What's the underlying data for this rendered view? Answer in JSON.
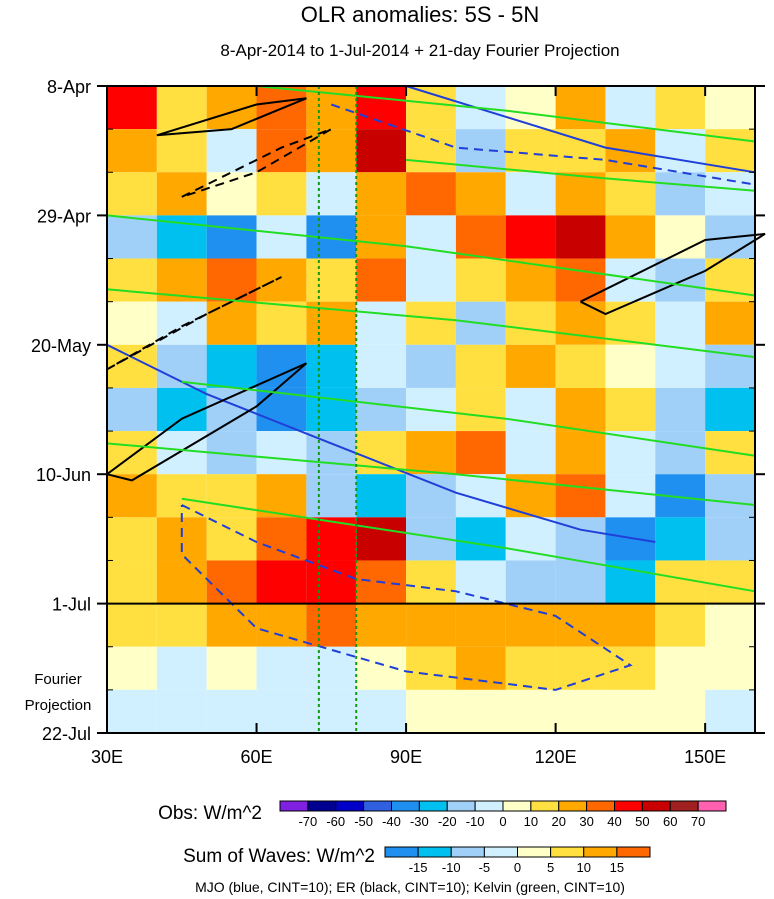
{
  "chart_data": {
    "type": "heatmap",
    "title": "OLR anomalies: 5S - 5N",
    "subtitle": "8-Apr-2014 to 1-Jul-2014 + 21-day Fourier Projection",
    "x_ticks": [
      {
        "lon": 30,
        "label": "30E"
      },
      {
        "lon": 60,
        "label": "60E"
      },
      {
        "lon": 90,
        "label": "90E"
      },
      {
        "lon": 120,
        "label": "120E"
      },
      {
        "lon": 150,
        "label": "150E"
      }
    ],
    "xlim": [
      30,
      160
    ],
    "y_ticks": [
      {
        "day": 0,
        "label": "8-Apr"
      },
      {
        "day": 21,
        "label": "29-Apr"
      },
      {
        "day": 42,
        "label": "20-May"
      },
      {
        "day": 63,
        "label": "10-Jun"
      },
      {
        "day": 84,
        "label": "1-Jul"
      },
      {
        "day": 105,
        "label": "22-Jul"
      }
    ],
    "ylim_days": [
      0,
      105
    ],
    "projection_label": [
      "Fourier",
      "Projection"
    ],
    "projection_start_day": 84,
    "reference_lons": [
      72.5,
      80
    ],
    "grid_lons": [
      30,
      40,
      50,
      60,
      70,
      80,
      90,
      100,
      110,
      120,
      130,
      140,
      150,
      160
    ],
    "grid_days": [
      0,
      7,
      14,
      21,
      28,
      35,
      42,
      49,
      56,
      63,
      70,
      77,
      84,
      91,
      98
    ],
    "values": [
      [
        40,
        10,
        20,
        30,
        20,
        40,
        10,
        -10,
        0,
        20,
        -10,
        10,
        0,
        -20
      ],
      [
        20,
        10,
        -10,
        30,
        20,
        50,
        10,
        -20,
        10,
        10,
        20,
        -10,
        10,
        -10
      ],
      [
        10,
        20,
        0,
        10,
        -10,
        20,
        30,
        20,
        -10,
        20,
        10,
        -20,
        -10,
        10
      ],
      [
        -20,
        -30,
        -40,
        -10,
        -40,
        20,
        -10,
        30,
        40,
        50,
        20,
        0,
        -20,
        -10
      ],
      [
        10,
        20,
        30,
        20,
        10,
        30,
        -10,
        10,
        20,
        30,
        -10,
        -20,
        10,
        -10
      ],
      [
        0,
        -10,
        20,
        10,
        20,
        -10,
        10,
        -20,
        10,
        20,
        10,
        -10,
        20,
        10
      ],
      [
        10,
        -20,
        -30,
        -40,
        -30,
        -10,
        -20,
        10,
        20,
        10,
        0,
        -10,
        -20,
        10
      ],
      [
        -20,
        -30,
        -20,
        -40,
        -30,
        -20,
        -10,
        10,
        -10,
        20,
        10,
        -20,
        -30,
        10
      ],
      [
        10,
        -10,
        -20,
        -10,
        -20,
        10,
        20,
        30,
        -10,
        20,
        -10,
        -20,
        10,
        -10
      ],
      [
        20,
        10,
        10,
        20,
        -20,
        -30,
        -20,
        -10,
        20,
        30,
        -10,
        -40,
        -20,
        -30
      ],
      [
        10,
        20,
        10,
        30,
        40,
        50,
        -20,
        -30,
        -10,
        -20,
        -40,
        -30,
        -20,
        -10
      ],
      [
        10,
        20,
        30,
        40,
        40,
        30,
        10,
        -10,
        -20,
        -20,
        -30,
        10,
        10,
        -20
      ],
      [
        5,
        5,
        10,
        10,
        15,
        10,
        10,
        10,
        10,
        10,
        10,
        5,
        0,
        5
      ],
      [
        0,
        -5,
        0,
        -5,
        -5,
        0,
        5,
        10,
        5,
        5,
        5,
        0,
        0,
        5
      ],
      [
        -5,
        -5,
        -5,
        -5,
        -5,
        -5,
        0,
        0,
        0,
        0,
        0,
        0,
        -5,
        5
      ]
    ],
    "contours": [
      {
        "wave": "MJO",
        "color": "#1f3fd8",
        "dash": false,
        "points": [
          [
            30,
            42
          ],
          [
            50,
            50
          ],
          [
            75,
            58
          ],
          [
            100,
            66
          ],
          [
            125,
            72
          ],
          [
            140,
            74
          ]
        ]
      },
      {
        "wave": "MJO",
        "color": "#1f3fd8",
        "dash": false,
        "points": [
          [
            90,
            0
          ],
          [
            110,
            5
          ],
          [
            130,
            10
          ],
          [
            160,
            14
          ]
        ]
      },
      {
        "wave": "MJO",
        "color": "#1f3fd8",
        "dash": true,
        "points": [
          [
            45,
            68
          ],
          [
            60,
            74
          ],
          [
            80,
            80
          ],
          [
            100,
            82
          ],
          [
            120,
            86
          ],
          [
            135,
            94
          ],
          [
            120,
            98
          ],
          [
            90,
            95
          ],
          [
            60,
            88
          ],
          [
            45,
            76
          ],
          [
            45,
            68
          ]
        ]
      },
      {
        "wave": "MJO",
        "color": "#1f3fd8",
        "dash": true,
        "points": [
          [
            75,
            3
          ],
          [
            100,
            10
          ],
          [
            130,
            12
          ],
          [
            160,
            16
          ]
        ]
      },
      {
        "wave": "ER",
        "color": "#000000",
        "dash": false,
        "points": [
          [
            40,
            8
          ],
          [
            60,
            3
          ],
          [
            70,
            2
          ],
          [
            55,
            7
          ],
          [
            40,
            8
          ]
        ]
      },
      {
        "wave": "ER",
        "color": "#000000",
        "dash": false,
        "points": [
          [
            30,
            63
          ],
          [
            45,
            54
          ],
          [
            70,
            45
          ],
          [
            60,
            52
          ],
          [
            35,
            64
          ],
          [
            30,
            63
          ]
        ]
      },
      {
        "wave": "ER",
        "color": "#000000",
        "dash": false,
        "points": [
          [
            125,
            35
          ],
          [
            150,
            25
          ],
          [
            162,
            24
          ],
          [
            150,
            30
          ],
          [
            130,
            37
          ],
          [
            125,
            35
          ]
        ]
      },
      {
        "wave": "ER",
        "color": "#000000",
        "dash": true,
        "points": [
          [
            30,
            46
          ],
          [
            50,
            37
          ],
          [
            65,
            31
          ],
          [
            45,
            39
          ],
          [
            30,
            46
          ]
        ]
      },
      {
        "wave": "ER",
        "color": "#000000",
        "dash": true,
        "points": [
          [
            45,
            18
          ],
          [
            65,
            10
          ],
          [
            75,
            7
          ],
          [
            60,
            14
          ],
          [
            45,
            18
          ]
        ]
      },
      {
        "wave": "Kelvin",
        "color": "#22dd22",
        "dash": false,
        "points": [
          [
            30,
            21
          ],
          [
            90,
            26
          ],
          [
            160,
            34
          ]
        ]
      },
      {
        "wave": "Kelvin",
        "color": "#22dd22",
        "dash": false,
        "points": [
          [
            30,
            33
          ],
          [
            100,
            38
          ],
          [
            160,
            44
          ]
        ]
      },
      {
        "wave": "Kelvin",
        "color": "#22dd22",
        "dash": false,
        "points": [
          [
            45,
            48
          ],
          [
            110,
            54
          ],
          [
            160,
            60
          ]
        ]
      },
      {
        "wave": "Kelvin",
        "color": "#22dd22",
        "dash": false,
        "points": [
          [
            30,
            58
          ],
          [
            100,
            63
          ],
          [
            160,
            68
          ]
        ]
      },
      {
        "wave": "Kelvin",
        "color": "#22dd22",
        "dash": false,
        "points": [
          [
            45,
            67
          ],
          [
            110,
            75
          ],
          [
            160,
            82
          ]
        ]
      },
      {
        "wave": "Kelvin",
        "color": "#22dd22",
        "dash": false,
        "points": [
          [
            60,
            0
          ],
          [
            110,
            4
          ],
          [
            160,
            9
          ]
        ]
      },
      {
        "wave": "Kelvin",
        "color": "#22dd22",
        "dash": false,
        "points": [
          [
            90,
            12
          ],
          [
            130,
            15
          ],
          [
            160,
            17
          ]
        ]
      }
    ],
    "obs_colorbar": {
      "label": "Obs: W/m^2",
      "levels": [
        -70,
        -60,
        -50,
        -40,
        -30,
        -20,
        -10,
        0,
        10,
        20,
        30,
        40,
        50,
        60,
        70
      ],
      "colors": [
        "#8020e0",
        "#000090",
        "#0000c8",
        "#3060e0",
        "#2090f0",
        "#00c0f0",
        "#a0d0f8",
        "#d0f0ff",
        "#ffffc8",
        "#ffe040",
        "#ffa800",
        "#ff6800",
        "#ff0000",
        "#c80000",
        "#a02020",
        "#ff60b0"
      ]
    },
    "waves_colorbar": {
      "label": "Sum of Waves: W/m^2",
      "levels": [
        -15,
        -10,
        -5,
        0,
        5,
        10,
        15
      ],
      "colors": [
        "#2090f0",
        "#00c0f0",
        "#a0d0f8",
        "#d0f0ff",
        "#ffffc8",
        "#ffe040",
        "#ffa800",
        "#ff6800"
      ]
    },
    "footnote": "MJO (blue, CINT=10); ER (black, CINT=10); Kelvin (green, CINT=10)"
  }
}
